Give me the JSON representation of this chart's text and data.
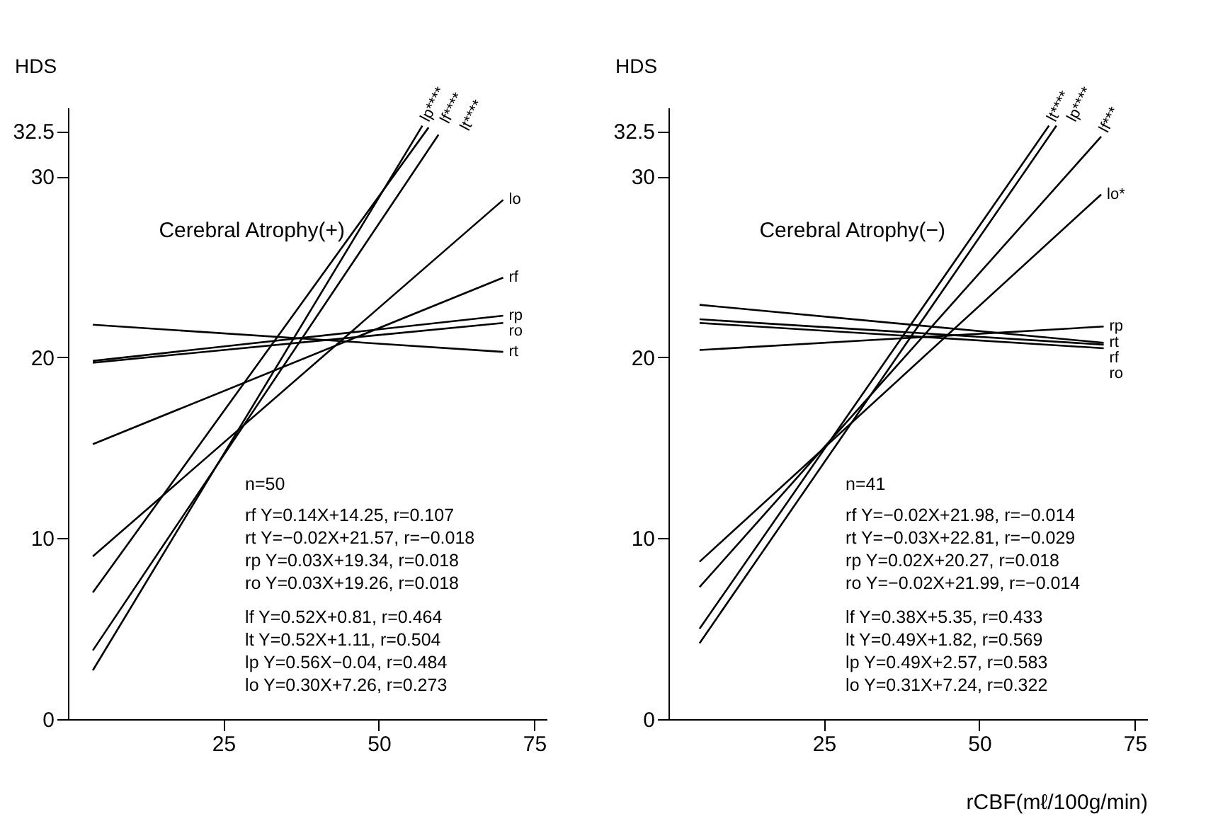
{
  "chart_data": [
    {
      "type": "line",
      "ylabel": "HDS",
      "xlim": [
        0,
        77
      ],
      "ylim": [
        0,
        33.8
      ],
      "xticks": [
        25,
        50,
        75
      ],
      "yticks": [
        0,
        10,
        20,
        30,
        32.5
      ],
      "grid": false,
      "legend": false,
      "series": [
        {
          "name": "rf",
          "color": "#000000",
          "x": [
            4,
            70
          ],
          "values": [
            15.2,
            24.4
          ]
        },
        {
          "name": "rt",
          "color": "#000000",
          "x": [
            4,
            70
          ],
          "values": [
            21.8,
            20.3
          ]
        },
        {
          "name": "rp",
          "color": "#000000",
          "x": [
            4,
            70
          ],
          "values": [
            19.8,
            22.3
          ]
        },
        {
          "name": "ro",
          "color": "#000000",
          "x": [
            4,
            70
          ],
          "values": [
            19.7,
            21.9
          ]
        },
        {
          "name": "lp****",
          "color": "#000000",
          "x": [
            4,
            57
          ],
          "values": [
            2.7,
            32.8
          ]
        },
        {
          "name": "lf****",
          "color": "#000000",
          "x": [
            4,
            58
          ],
          "values": [
            7.0,
            32.7
          ]
        },
        {
          "name": "lt****",
          "color": "#000000",
          "x": [
            4,
            59.6
          ],
          "values": [
            3.8,
            32.3
          ]
        },
        {
          "name": "lo",
          "color": "#000000",
          "x": [
            4,
            70
          ],
          "values": [
            9.0,
            28.7
          ]
        }
      ],
      "annotations": [
        "Cerebral Atrophy(+)",
        "n=50",
        "rf Y=0.14X+14.25, r=0.107",
        "rt Y=−0.02X+21.57, r=−0.018",
        "rp Y=0.03X+19.34, r=0.018",
        "ro Y=0.03X+19.26, r=0.018",
        "lf Y=0.52X+0.81, r=0.464",
        "lt Y=0.52X+1.11, r=0.504",
        "lp Y=0.56X−0.04, r=0.484",
        "lo Y=0.30X+7.26, r=0.273"
      ]
    },
    {
      "type": "line",
      "ylabel": "HDS",
      "xlabel": "rCBF(mℓ/100g/min)",
      "xlim": [
        0,
        77
      ],
      "ylim": [
        0,
        33.8
      ],
      "xticks": [
        25,
        50,
        75
      ],
      "yticks": [
        0,
        10,
        20,
        30,
        32.5
      ],
      "grid": false,
      "legend": false,
      "series": [
        {
          "name": "rp",
          "color": "#000000",
          "x": [
            5,
            70
          ],
          "values": [
            20.4,
            21.7
          ]
        },
        {
          "name": "rt",
          "color": "#000000",
          "x": [
            5,
            70
          ],
          "values": [
            22.9,
            20.8
          ]
        },
        {
          "name": "rf",
          "color": "#000000",
          "x": [
            5,
            70
          ],
          "values": [
            22.1,
            20.7
          ]
        },
        {
          "name": "ro",
          "color": "#000000",
          "x": [
            5,
            70
          ],
          "values": [
            21.9,
            20.5
          ]
        },
        {
          "name": "lt****",
          "color": "#000000",
          "x": [
            5,
            61.2
          ],
          "values": [
            5.0,
            32.8
          ]
        },
        {
          "name": "lp****",
          "color": "#000000",
          "x": [
            5,
            62.4
          ],
          "values": [
            4.2,
            32.8
          ]
        },
        {
          "name": "lf***",
          "color": "#000000",
          "x": [
            5,
            69.6
          ],
          "values": [
            7.3,
            32.2
          ]
        },
        {
          "name": "lo*",
          "color": "#000000",
          "x": [
            5,
            69.6
          ],
          "values": [
            8.7,
            29.0
          ]
        }
      ],
      "annotations": [
        "Cerebral Atrophy(−)",
        "n=41",
        "rf Y=−0.02X+21.98, r=−0.014",
        "rt Y=−0.03X+22.81, r=−0.029",
        "rp Y=0.02X+20.27, r=0.018",
        "ro Y=−0.02X+21.99, r=−0.014",
        "lf Y=0.38X+5.35, r=0.433",
        "lt Y=0.49X+1.82, r=0.569",
        "lp Y=0.49X+2.57, r=0.583",
        "lo Y=0.31X+7.24, r=0.322"
      ]
    }
  ]
}
